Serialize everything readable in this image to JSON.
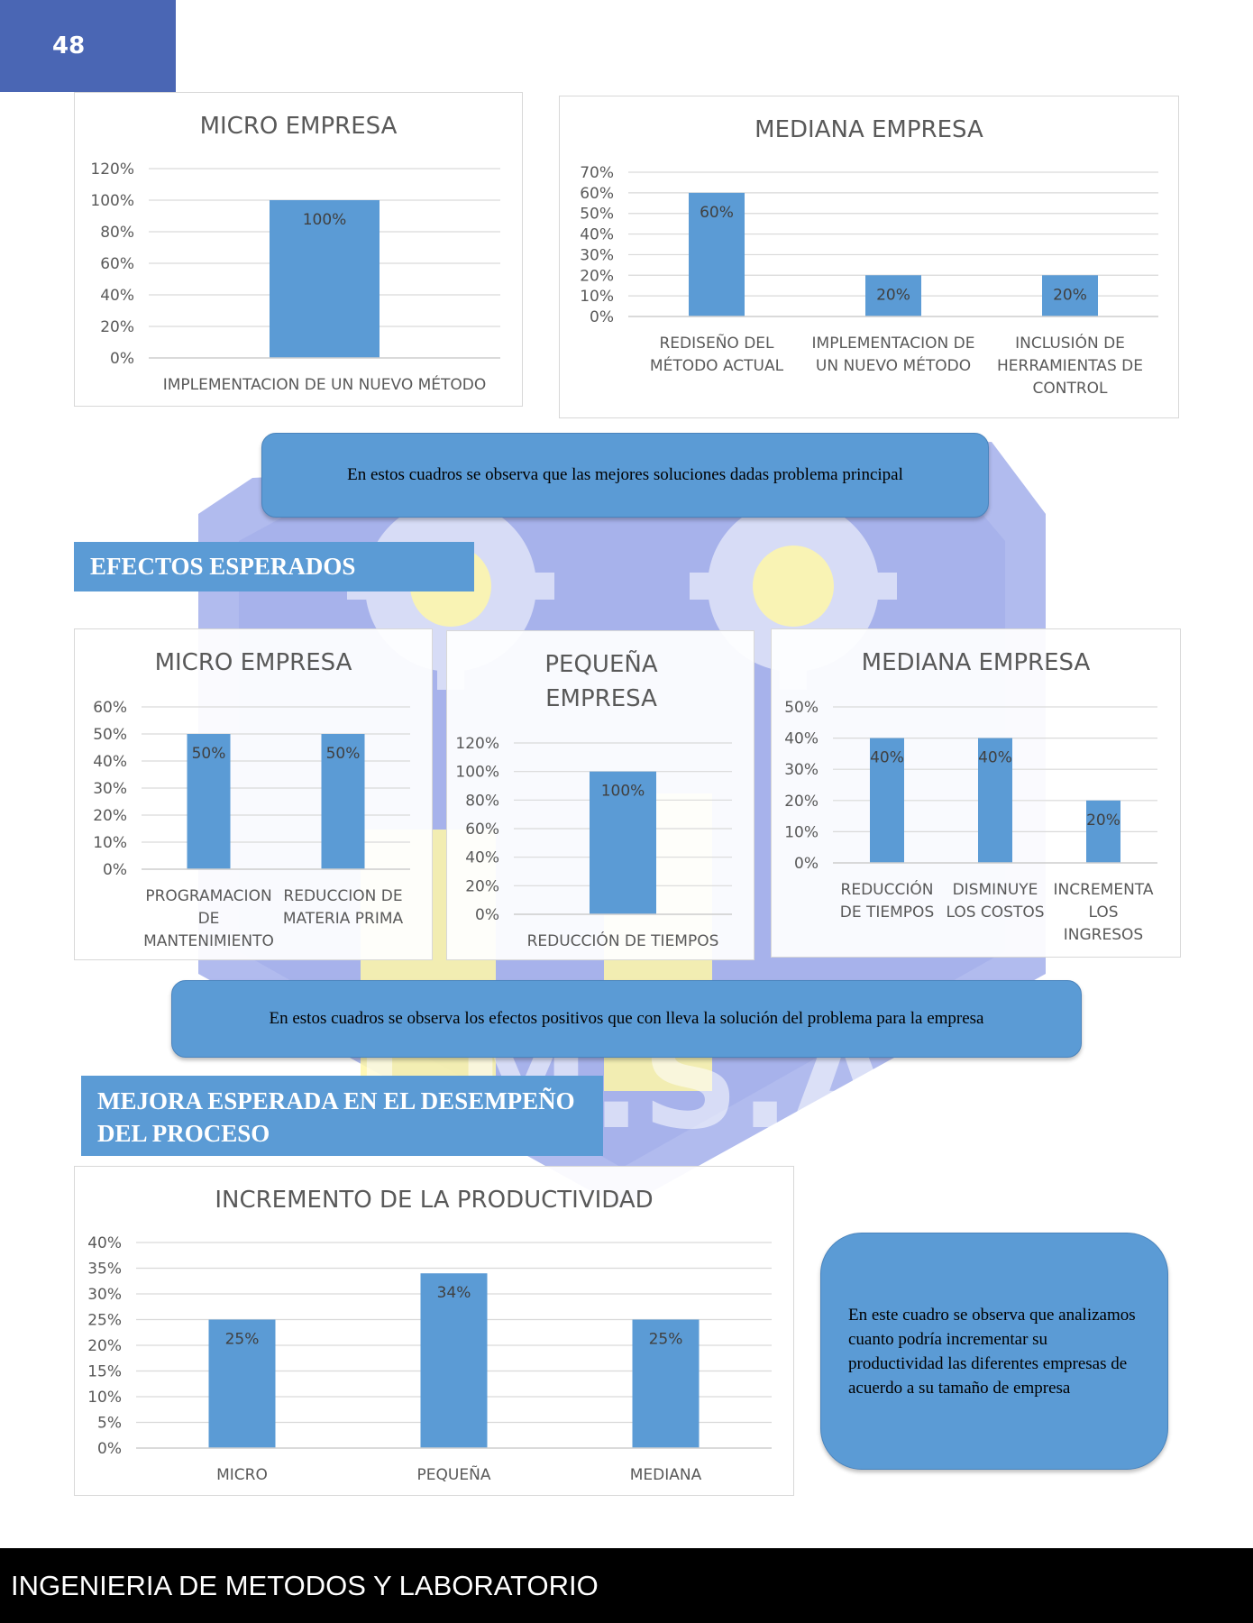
{
  "page_number": "48",
  "footer": "INGENIERIA DE METODOS Y LABORATORIO",
  "watermark_text": "U.M.S.A.",
  "colors": {
    "bar": "#5b9bd5",
    "header_blue": "#4a66b4",
    "grid": "#d9d9d9",
    "axis_text": "#595959",
    "label_text": "#404040"
  },
  "notes": {
    "solutions": "En estos cuadros se observa que las mejores soluciones dadas problema principal",
    "effects": "En estos cuadros se observa los efectos positivos que con lleva la solución del problema para la empresa",
    "productivity": "En este cuadro se observa que analizamos cuanto podría incrementar su productividad las diferentes empresas de acuerdo a su tamaño de empresa"
  },
  "headings": {
    "effects": "EFECTOS ESPERADOS",
    "improvement_line1": "MEJORA ESPERADA EN EL DESEMPEÑO",
    "improvement_line2": "DEL PROCESO"
  },
  "chart_data": [
    {
      "type": "bar",
      "title": "MICRO EMPRESA",
      "categories": [
        "IMPLEMENTACION DE UN NUEVO MÉTODO"
      ],
      "values": [
        100
      ],
      "data_labels": [
        "100%"
      ],
      "ylim": [
        0,
        120
      ],
      "yticks": [
        "0%",
        "20%",
        "40%",
        "60%",
        "80%",
        "100%",
        "120%"
      ],
      "grid": true
    },
    {
      "type": "bar",
      "title": "MEDIANA EMPRESA",
      "categories": [
        "REDISEÑO DEL MÉTODO ACTUAL",
        "IMPLEMENTACION DE UN NUEVO MÉTODO",
        "INCLUSIÓN DE HERRAMIENTAS DE CONTROL"
      ],
      "values": [
        60,
        20,
        20
      ],
      "data_labels": [
        "60%",
        "20%",
        "20%"
      ],
      "ylim": [
        0,
        70
      ],
      "yticks": [
        "0%",
        "10%",
        "20%",
        "30%",
        "40%",
        "50%",
        "60%",
        "70%"
      ],
      "grid": true
    },
    {
      "type": "bar",
      "title": "MICRO EMPRESA",
      "categories": [
        "PROGRAMACION DE MANTENIMIENTO",
        "REDUCCION DE MATERIA PRIMA"
      ],
      "values": [
        50,
        50
      ],
      "data_labels": [
        "50%",
        "50%"
      ],
      "ylim": [
        0,
        60
      ],
      "yticks": [
        "0%",
        "10%",
        "20%",
        "30%",
        "40%",
        "50%",
        "60%"
      ],
      "grid": true
    },
    {
      "type": "bar",
      "title": "PEQUEÑA EMPRESA",
      "categories": [
        "REDUCCIÓN DE TIEMPOS"
      ],
      "values": [
        100
      ],
      "data_labels": [
        "100%"
      ],
      "ylim": [
        0,
        120
      ],
      "yticks": [
        "0%",
        "20%",
        "40%",
        "60%",
        "80%",
        "100%",
        "120%"
      ],
      "grid": true
    },
    {
      "type": "bar",
      "title": "MEDIANA EMPRESA",
      "categories": [
        "REDUCCIÓN DE TIEMPOS",
        "DISMINUYE LOS COSTOS",
        "INCREMENTA LOS INGRESOS"
      ],
      "values": [
        40,
        40,
        20
      ],
      "data_labels": [
        "40%",
        "40%",
        "20%"
      ],
      "ylim": [
        0,
        50
      ],
      "yticks": [
        "0%",
        "10%",
        "20%",
        "30%",
        "40%",
        "50%"
      ],
      "grid": true
    },
    {
      "type": "bar",
      "title": "INCREMENTO DE LA PRODUCTIVIDAD",
      "categories": [
        "MICRO",
        "PEQUEÑA",
        "MEDIANA"
      ],
      "values": [
        25,
        34,
        25
      ],
      "data_labels": [
        "25%",
        "34%",
        "25%"
      ],
      "ylim": [
        0,
        40
      ],
      "yticks": [
        "0%",
        "5%",
        "10%",
        "15%",
        "20%",
        "25%",
        "30%",
        "35%",
        "40%"
      ],
      "grid": true
    }
  ]
}
